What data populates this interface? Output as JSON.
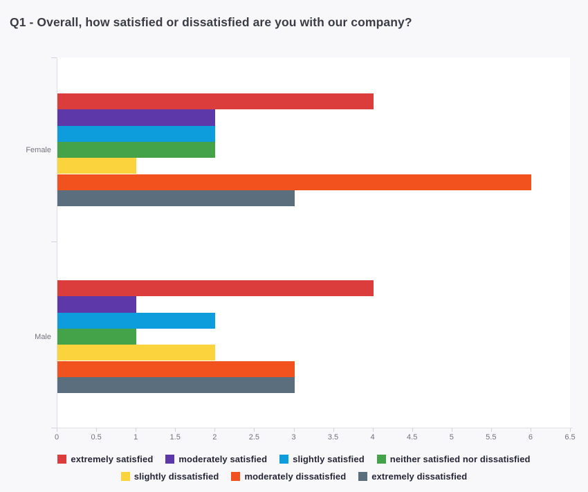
{
  "title": "Q1 - Overall, how satisfied or dissatisfied are you with our company?",
  "chart_data": {
    "type": "bar",
    "orientation": "horizontal",
    "title": "Q1 - Overall, how satisfied or dissatisfied are you with our company?",
    "xlabel": "",
    "ylabel": "",
    "categories": [
      "Female",
      "Male"
    ],
    "series": [
      {
        "name": "extremely satisfied",
        "color": "#db3c3c",
        "values": [
          4,
          4
        ]
      },
      {
        "name": "moderately satisfied",
        "color": "#5c38a9",
        "values": [
          2,
          1
        ]
      },
      {
        "name": "slightly satisfied",
        "color": "#0d9ddc",
        "values": [
          2,
          2
        ]
      },
      {
        "name": "neither satisfied nor dissatisfied",
        "color": "#44a248",
        "values": [
          2,
          1
        ]
      },
      {
        "name": "slightly dissatisfied",
        "color": "#fbd33c",
        "values": [
          1,
          2
        ]
      },
      {
        "name": "moderately dissatisfied",
        "color": "#f2531e",
        "values": [
          6,
          3
        ]
      },
      {
        "name": "extremely dissatisfied",
        "color": "#5a6e7d",
        "values": [
          3,
          3
        ]
      }
    ],
    "xlim": [
      0,
      6.5
    ],
    "x_tick_labels": [
      "0",
      "0.5",
      "1",
      "1.5",
      "2",
      "2.5",
      "3",
      "3.5",
      "4",
      "4.5",
      "5",
      "5.5",
      "6",
      "6.5"
    ],
    "grid": false,
    "legend_position": "bottom",
    "legend_rows": [
      [
        0,
        1,
        2,
        3
      ],
      [
        4,
        5,
        6
      ]
    ]
  }
}
